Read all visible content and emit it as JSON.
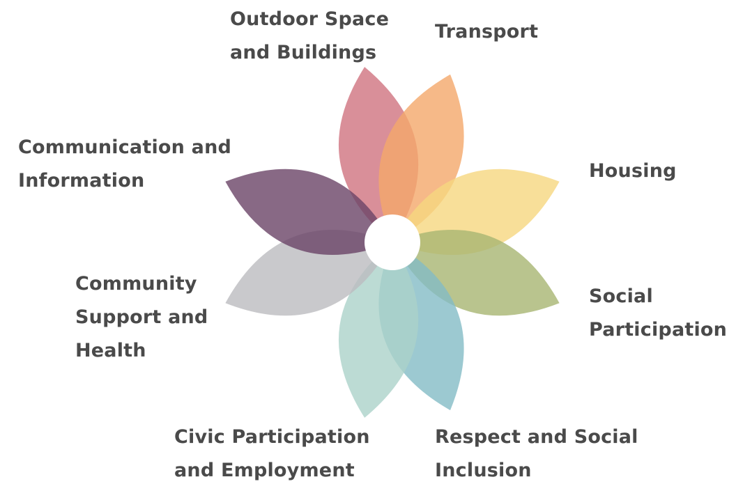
{
  "center_color": "#ffffff",
  "petals": [
    {
      "name": "petal-outdoor-space",
      "color": "#d0737f"
    },
    {
      "name": "petal-transport",
      "color": "#f4a86a"
    },
    {
      "name": "petal-housing",
      "color": "#f6d77f"
    },
    {
      "name": "petal-social-participation",
      "color": "#a8b572"
    },
    {
      "name": "petal-respect-inclusion",
      "color": "#83bcc6"
    },
    {
      "name": "petal-civic-participation",
      "color": "#abd2c9"
    },
    {
      "name": "petal-community-support",
      "color": "#bbbcbf"
    },
    {
      "name": "petal-communication",
      "color": "#6a4467"
    }
  ],
  "labels": {
    "outdoor": {
      "line1": "Outdoor Space",
      "line2": "and Buildings"
    },
    "transport": {
      "line1": "Transport"
    },
    "comm": {
      "line1": "Communication and",
      "line2": "Information"
    },
    "housing": {
      "line1": "Housing"
    },
    "community": {
      "line1": "Community",
      "line2": "Support and",
      "line3": "Health"
    },
    "social": {
      "line1": "Social",
      "line2": "Participation"
    },
    "civic": {
      "line1": "Civic Participation",
      "line2": "and Employment"
    },
    "respect": {
      "line1": "Respect and Social",
      "line2": "Inclusion"
    }
  }
}
